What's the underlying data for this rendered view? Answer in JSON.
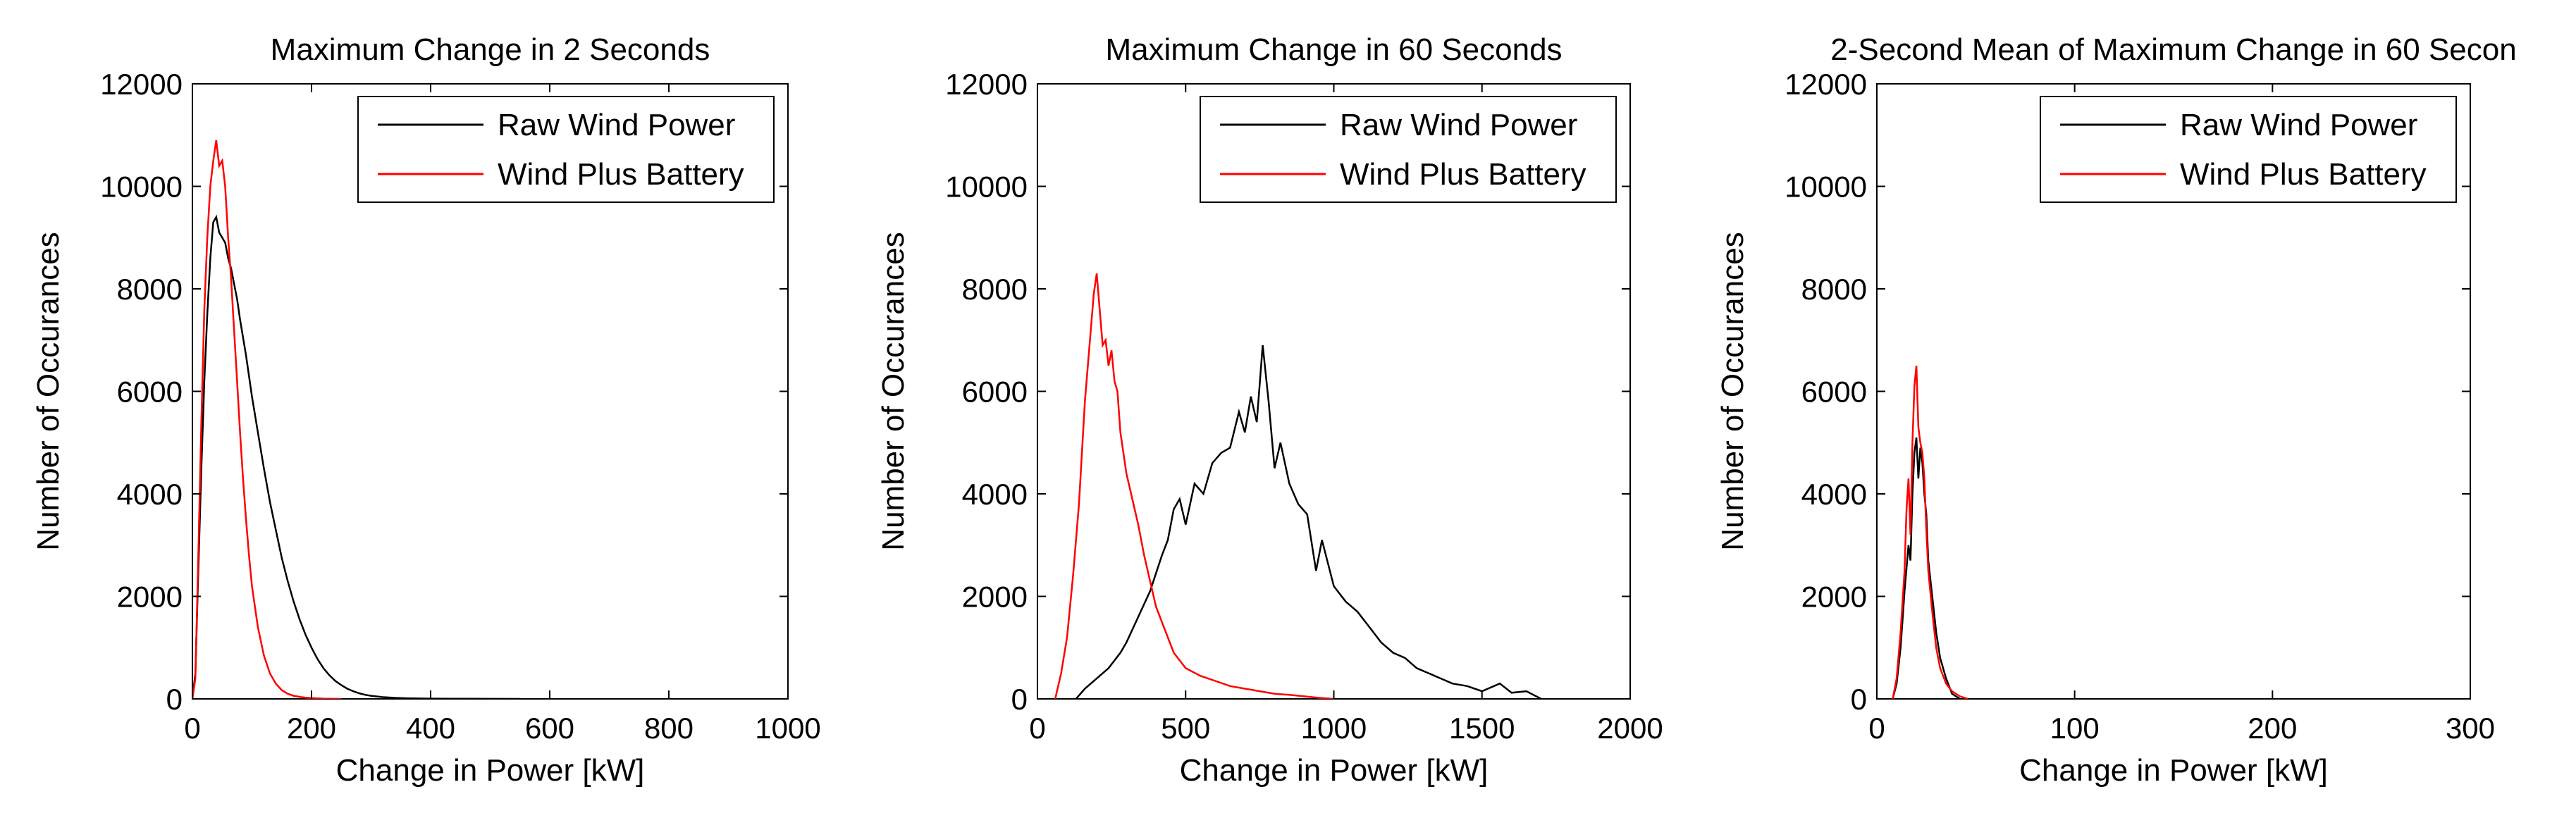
{
  "figure": {
    "colors": {
      "raw": "#000000",
      "battery": "#ff0000",
      "axes": "#000000",
      "background": "#ffffff"
    },
    "legend_position": "top-right"
  },
  "chart_data": [
    {
      "type": "line",
      "title": "Maximum Change in 2 Seconds",
      "xlabel": "Change in Power [kW]",
      "ylabel": "Number of Occurances",
      "xlim": [
        0,
        1000
      ],
      "ylim": [
        0,
        12000
      ],
      "xticks": [
        "0",
        "200",
        "400",
        "600",
        "800",
        "1000"
      ],
      "yticks": [
        "0",
        "2000",
        "4000",
        "6000",
        "8000",
        "10000",
        "12000"
      ],
      "grid": false,
      "legend": [
        "Raw Wind Power",
        "Wind Plus Battery"
      ],
      "series": [
        {
          "name": "Raw Wind Power",
          "color": "#000000",
          "x": [
            0,
            5,
            10,
            15,
            20,
            25,
            30,
            35,
            40,
            45,
            50,
            55,
            60,
            65,
            70,
            75,
            80,
            90,
            100,
            110,
            120,
            130,
            140,
            150,
            160,
            170,
            180,
            190,
            200,
            210,
            220,
            230,
            240,
            250,
            260,
            270,
            280,
            290,
            300,
            320,
            340,
            360,
            400,
            450,
            500,
            550
          ],
          "y": [
            0,
            500,
            2500,
            4500,
            6200,
            7500,
            8600,
            9300,
            9400,
            9100,
            9000,
            8900,
            8600,
            8400,
            8100,
            7800,
            7400,
            6700,
            5900,
            5200,
            4500,
            3850,
            3300,
            2750,
            2300,
            1900,
            1550,
            1250,
            1000,
            780,
            600,
            460,
            350,
            270,
            200,
            150,
            110,
            80,
            60,
            35,
            20,
            12,
            6,
            3,
            2,
            0
          ]
        },
        {
          "name": "Wind Plus Battery",
          "color": "#ff0000",
          "x": [
            0,
            5,
            10,
            15,
            20,
            25,
            30,
            35,
            40,
            45,
            50,
            55,
            60,
            65,
            70,
            75,
            80,
            85,
            90,
            95,
            100,
            110,
            120,
            130,
            140,
            150,
            160,
            170,
            180,
            190,
            200,
            220,
            250
          ],
          "y": [
            0,
            400,
            2800,
            5400,
            7600,
            9000,
            10000,
            10500,
            10900,
            10400,
            10500,
            10000,
            9000,
            8200,
            7200,
            6200,
            5200,
            4300,
            3500,
            2800,
            2200,
            1400,
            850,
            500,
            300,
            170,
            100,
            60,
            40,
            25,
            15,
            5,
            0
          ]
        }
      ]
    },
    {
      "type": "line",
      "title": "Maximum Change in 60 Seconds",
      "xlabel": "Change in Power [kW]",
      "ylabel": "Number of Occurances",
      "xlim": [
        0,
        2000
      ],
      "ylim": [
        0,
        12000
      ],
      "xticks": [
        "0",
        "500",
        "1000",
        "1500",
        "2000"
      ],
      "yticks": [
        "0",
        "2000",
        "4000",
        "6000",
        "8000",
        "10000",
        "12000"
      ],
      "grid": false,
      "legend": [
        "Raw Wind Power",
        "Wind Plus Battery"
      ],
      "series": [
        {
          "name": "Raw Wind Power",
          "color": "#000000",
          "x": [
            130,
            160,
            200,
            240,
            280,
            300,
            340,
            380,
            420,
            440,
            460,
            480,
            500,
            530,
            560,
            590,
            620,
            650,
            680,
            700,
            720,
            740,
            760,
            780,
            800,
            820,
            850,
            880,
            910,
            940,
            960,
            1000,
            1040,
            1080,
            1120,
            1160,
            1200,
            1240,
            1280,
            1320,
            1360,
            1400,
            1450,
            1500,
            1560,
            1600,
            1650,
            1700
          ],
          "y": [
            0,
            200,
            400,
            600,
            900,
            1100,
            1600,
            2100,
            2800,
            3100,
            3700,
            3900,
            3400,
            4200,
            4000,
            4600,
            4800,
            4900,
            5600,
            5200,
            5900,
            5400,
            6900,
            5800,
            4500,
            5000,
            4200,
            3800,
            3600,
            2500,
            3100,
            2200,
            1900,
            1700,
            1400,
            1100,
            900,
            800,
            600,
            500,
            400,
            300,
            250,
            150,
            300,
            120,
            150,
            0
          ]
        },
        {
          "name": "Wind Plus Battery",
          "color": "#ff0000",
          "x": [
            60,
            80,
            100,
            120,
            140,
            160,
            180,
            190,
            200,
            210,
            220,
            230,
            240,
            250,
            260,
            270,
            280,
            300,
            320,
            340,
            360,
            380,
            400,
            420,
            440,
            460,
            500,
            550,
            600,
            650,
            700,
            750,
            800,
            850,
            900,
            950,
            1000
          ],
          "y": [
            0,
            500,
            1200,
            2400,
            3800,
            5800,
            7200,
            7900,
            8300,
            7600,
            6900,
            7000,
            6500,
            6800,
            6200,
            6000,
            5200,
            4400,
            3900,
            3400,
            2800,
            2300,
            1800,
            1500,
            1200,
            900,
            600,
            450,
            350,
            250,
            200,
            150,
            100,
            80,
            50,
            20,
            0
          ]
        }
      ]
    },
    {
      "type": "line",
      "title": "2-Second Mean of Maximum Change in 60 Secon",
      "xlabel": "Change in Power [kW]",
      "ylabel": "Number of Occurances",
      "xlim": [
        0,
        300
      ],
      "ylim": [
        0,
        12000
      ],
      "xticks": [
        "0",
        "100",
        "200",
        "300"
      ],
      "yticks": [
        "0",
        "2000",
        "4000",
        "6000",
        "8000",
        "10000",
        "12000"
      ],
      "grid": false,
      "legend": [
        "Raw Wind Power",
        "Wind Plus Battery"
      ],
      "series": [
        {
          "name": "Raw Wind Power",
          "color": "#000000",
          "x": [
            8,
            10,
            12,
            14,
            16,
            17,
            18,
            19,
            20,
            21,
            22,
            23,
            24,
            25,
            26,
            28,
            30,
            32,
            35,
            38,
            42
          ],
          "y": [
            0,
            300,
            1000,
            2100,
            3000,
            2700,
            4000,
            4800,
            5100,
            4300,
            4900,
            4600,
            4000,
            3600,
            2700,
            2000,
            1300,
            800,
            400,
            100,
            0
          ]
        },
        {
          "name": "Wind Plus Battery",
          "color": "#ff0000",
          "x": [
            8,
            10,
            12,
            14,
            15,
            16,
            17,
            18,
            19,
            20,
            21,
            22,
            23,
            24,
            25,
            26,
            28,
            30,
            32,
            35,
            38,
            42,
            46
          ],
          "y": [
            0,
            400,
            1300,
            2500,
            3700,
            4300,
            3200,
            5000,
            6100,
            6500,
            5300,
            5000,
            4800,
            4300,
            3300,
            2500,
            1700,
            1000,
            600,
            300,
            150,
            50,
            0
          ]
        }
      ]
    }
  ]
}
